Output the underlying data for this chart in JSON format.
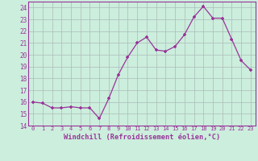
{
  "x": [
    0,
    1,
    2,
    3,
    4,
    5,
    6,
    7,
    8,
    9,
    10,
    11,
    12,
    13,
    14,
    15,
    16,
    17,
    18,
    19,
    20,
    21,
    22,
    23
  ],
  "y": [
    16.0,
    15.9,
    15.5,
    15.5,
    15.6,
    15.5,
    15.5,
    14.6,
    16.3,
    18.3,
    19.8,
    21.0,
    21.5,
    20.4,
    20.3,
    20.7,
    21.7,
    23.2,
    24.1,
    23.1,
    23.1,
    21.3,
    19.5,
    18.7
  ],
  "xlabel": "Windchill (Refroidissement éolien,°C)",
  "xlim": [
    -0.5,
    23.5
  ],
  "ylim": [
    14,
    24.5
  ],
  "yticks": [
    14,
    15,
    16,
    17,
    18,
    19,
    20,
    21,
    22,
    23,
    24
  ],
  "xticks": [
    0,
    1,
    2,
    3,
    4,
    5,
    6,
    7,
    8,
    9,
    10,
    11,
    12,
    13,
    14,
    15,
    16,
    17,
    18,
    19,
    20,
    21,
    22,
    23
  ],
  "line_color": "#993399",
  "marker": "+",
  "bg_color": "#cceedd",
  "grid_color": "#aabbb8",
  "tick_color": "#993399",
  "label_color": "#993399",
  "spine_color": "#993399"
}
